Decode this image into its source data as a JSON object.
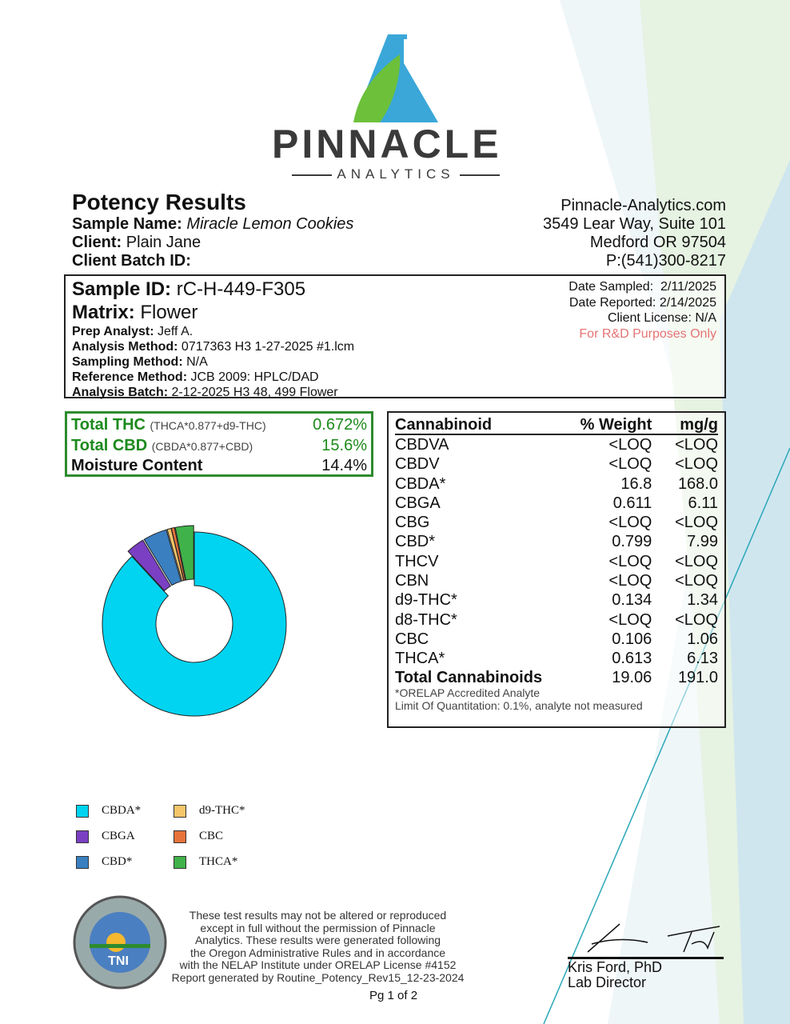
{
  "brand": {
    "name": "PINNACLE",
    "sub": "ANALYTICS",
    "colors": {
      "green": "#6cc03a",
      "blue": "#3aa7d8"
    }
  },
  "header": {
    "title": "Potency Results",
    "sample_name_label": "Sample Name:",
    "sample_name": "Miracle Lemon Cookies",
    "client_label": "Client:",
    "client": "Plain Jane",
    "batch_label": "Client Batch ID:",
    "batch": ""
  },
  "lab": {
    "website": "Pinnacle-Analytics.com",
    "address1": "3549 Lear Way, Suite 101",
    "address2": "Medford OR 97504",
    "phone": "P:(541)300-8217"
  },
  "sample": {
    "id_label": "Sample ID:",
    "id": "rC-H-449-F305",
    "matrix_label": "Matrix:",
    "matrix": "Flower",
    "prep_label": "Prep Analyst:",
    "prep": "Jeff A.",
    "method_label": "Analysis Method:",
    "method": "0717363 H3 1-27-2025 #1.lcm",
    "sampling_label": "Sampling Method:",
    "sampling": "N/A",
    "ref_label": "Reference Method:",
    "ref": "JCB 2009: HPLC/DAD",
    "abatch_label": "Analysis Batch:",
    "abatch": "2-12-2025 H3 48, 499 Flower",
    "date_sampled": "Date Sampled:  2/11/2025",
    "date_reported": "Date Reported: 2/14/2025",
    "license": "Client License: N/A",
    "purpose": "For R&D Purposes Only"
  },
  "totals": [
    {
      "label": "Total THC",
      "formula": "(THCA*0.877+d9-THC)",
      "value": "0.672%"
    },
    {
      "label": "Total CBD",
      "formula": "(CBDA*0.877+CBD)",
      "value": "15.6%"
    },
    {
      "label": "Moisture Content",
      "formula": "",
      "value": "14.4%"
    }
  ],
  "table": {
    "headers": [
      "Cannabinoid",
      "% Weight",
      "mg/g"
    ],
    "rows": [
      [
        "CBDVA",
        "<LOQ",
        "<LOQ"
      ],
      [
        "CBDV",
        "<LOQ",
        "<LOQ"
      ],
      [
        "CBDA*",
        "16.8",
        "168.0"
      ],
      [
        "CBGA",
        "0.611",
        "6.11"
      ],
      [
        "CBG",
        "<LOQ",
        "<LOQ"
      ],
      [
        "CBD*",
        "0.799",
        "7.99"
      ],
      [
        "THCV",
        "<LOQ",
        "<LOQ"
      ],
      [
        "CBN",
        "<LOQ",
        "<LOQ"
      ],
      [
        "d9-THC*",
        "0.134",
        "1.34"
      ],
      [
        "d8-THC*",
        "<LOQ",
        "<LOQ"
      ],
      [
        "CBC",
        "0.106",
        "1.06"
      ],
      [
        "THCA*",
        "0.613",
        "6.13"
      ]
    ],
    "total": [
      "Total Cannabinoids",
      "19.06",
      "191.0"
    ],
    "note1": "*ORELAP Accredited Analyte",
    "note2": "Limit Of Quantitation: 0.1%, analyte not measured"
  },
  "chart_data": {
    "type": "pie",
    "donut": true,
    "categories": [
      "CBDA*",
      "CBGA",
      "CBD*",
      "d9-THC*",
      "CBC",
      "THCA*"
    ],
    "values": [
      168.0,
      6.11,
      7.99,
      1.34,
      1.06,
      6.13
    ],
    "colors": [
      "#00d4f0",
      "#7b3fc4",
      "#3a7fc0",
      "#f5c66a",
      "#e8733a",
      "#3fb24a"
    ],
    "legend": "bottom-left"
  },
  "footer": {
    "disclaimer": [
      "These test results may not be altered or reproduced",
      "except in full without the permission of Pinnacle",
      "Analytics. These results were generated following",
      "the Oregon Administrative Rules and in accordance",
      "with the NELAP Institute under ORELAP License #4152",
      "Report generated by Routine_Potency_Rev15_12-23-2024"
    ],
    "seal_text": "NELAP ACCREDITED LABORATORY TNI",
    "page": "Pg 1 of 2",
    "signer": "Kris Ford, PhD",
    "signer_title": "Lab Director"
  }
}
